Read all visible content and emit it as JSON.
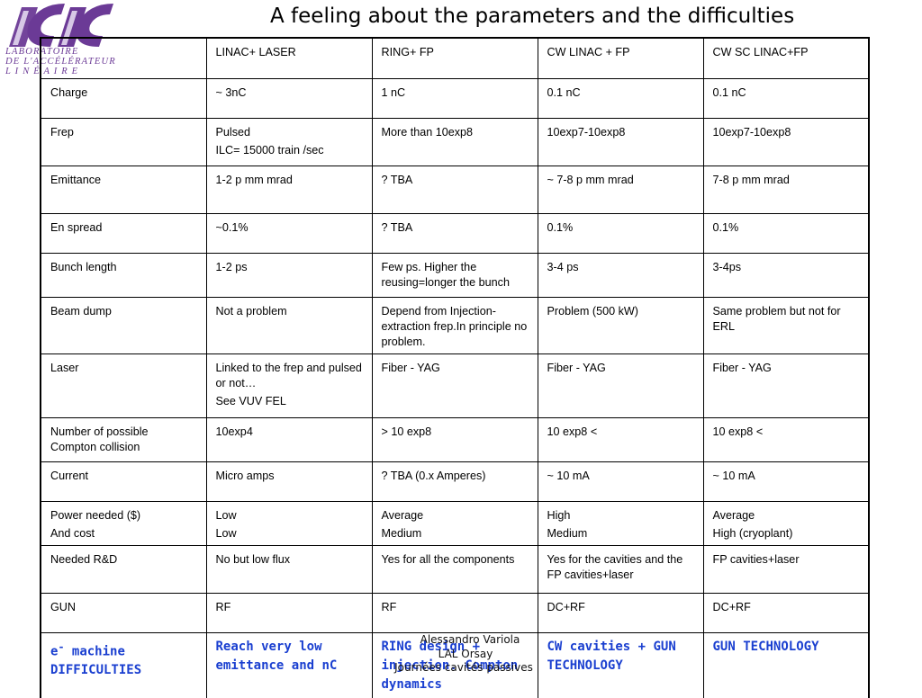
{
  "slide": {
    "title": "A feeling about the parameters and the difficulties"
  },
  "logo": {
    "lines": [
      "LABORATOIRE",
      "DE L'ACCÉLÉRATEUR",
      "L I N É A I R E"
    ],
    "color": "#6b3a96"
  },
  "table": {
    "header": [
      "",
      "LINAC+ LASER",
      "RING+ FP",
      "CW LINAC + FP",
      "CW SC LINAC+FP"
    ],
    "rows": [
      [
        [
          "Charge"
        ],
        [
          "~ 3nC"
        ],
        [
          "1 nC"
        ],
        [
          "0.1 nC"
        ],
        [
          "0.1 nC"
        ]
      ],
      [
        [
          "Frep"
        ],
        [
          "Pulsed",
          "ILC= 15000 train /sec"
        ],
        [
          "More than 10exp8"
        ],
        [
          "10exp7-10exp8"
        ],
        [
          "10exp7-10exp8"
        ]
      ],
      [
        [
          "Emittance"
        ],
        [
          "1-2 p mm mrad"
        ],
        [
          "? TBA"
        ],
        [
          "~ 7-8 p mm mrad"
        ],
        [
          "7-8 p mm mrad"
        ]
      ],
      [
        [
          "En spread"
        ],
        [
          "~0.1%"
        ],
        [
          "? TBA"
        ],
        [
          "0.1%"
        ],
        [
          "0.1%"
        ]
      ],
      [
        [
          "Bunch length"
        ],
        [
          "1-2 ps"
        ],
        [
          "Few ps. Higher the reusing=longer the bunch"
        ],
        [
          "3-4 ps"
        ],
        [
          "3-4ps"
        ]
      ],
      [
        [
          "Beam dump"
        ],
        [
          "Not a problem"
        ],
        [
          "Depend from Injection-extraction frep.In principle no problem."
        ],
        [
          "Problem (500 kW)"
        ],
        [
          "Same problem but not for ERL"
        ]
      ],
      [
        [
          "Laser"
        ],
        [
          "Linked to the frep and pulsed or not…",
          "See VUV FEL"
        ],
        [
          "Fiber - YAG"
        ],
        [
          "Fiber - YAG"
        ],
        [
          "Fiber - YAG"
        ]
      ],
      [
        [
          "Number of possible Compton collision"
        ],
        [
          "10exp4"
        ],
        [
          "> 10 exp8"
        ],
        [
          "10 exp8 <"
        ],
        [
          "10 exp8 <"
        ]
      ],
      [
        [
          "Current"
        ],
        [
          "Micro amps"
        ],
        [
          "? TBA (0.x Amperes)"
        ],
        [
          "~ 10 mA"
        ],
        [
          "~ 10 mA"
        ]
      ],
      [
        [
          "Power needed ($)",
          "And cost"
        ],
        [
          "Low",
          "Low"
        ],
        [
          "Average",
          "Medium"
        ],
        [
          "High",
          "Medium"
        ],
        [
          "Average",
          "High (cryoplant)"
        ]
      ],
      [
        [
          "Needed R&D"
        ],
        [
          "No but low flux"
        ],
        [
          "Yes for all the components"
        ],
        [
          "Yes for the cavities and the FP cavities+laser"
        ],
        [
          "FP cavities+laser"
        ]
      ],
      [
        [
          "GUN"
        ],
        [
          "RF"
        ],
        [
          "RF"
        ],
        [
          "DC+RF"
        ],
        [
          "DC+RF"
        ]
      ]
    ],
    "difficulties_row": {
      "c0_pre": "e",
      "c0_sup": "-",
      "c0_post": " machine DIFFICULTIES",
      "c1": "Reach very low emittance and nC",
      "c2": "RING design + injection. Compton dynamics",
      "c3": "CW cavities + GUN TECHNOLOGY",
      "c4": "GUN TECHNOLOGY",
      "color": "#1a3fd0"
    }
  },
  "footer": {
    "author": "Alessandro Variola",
    "lab": "LAL Orsay",
    "event": "Journées cavités passives"
  }
}
